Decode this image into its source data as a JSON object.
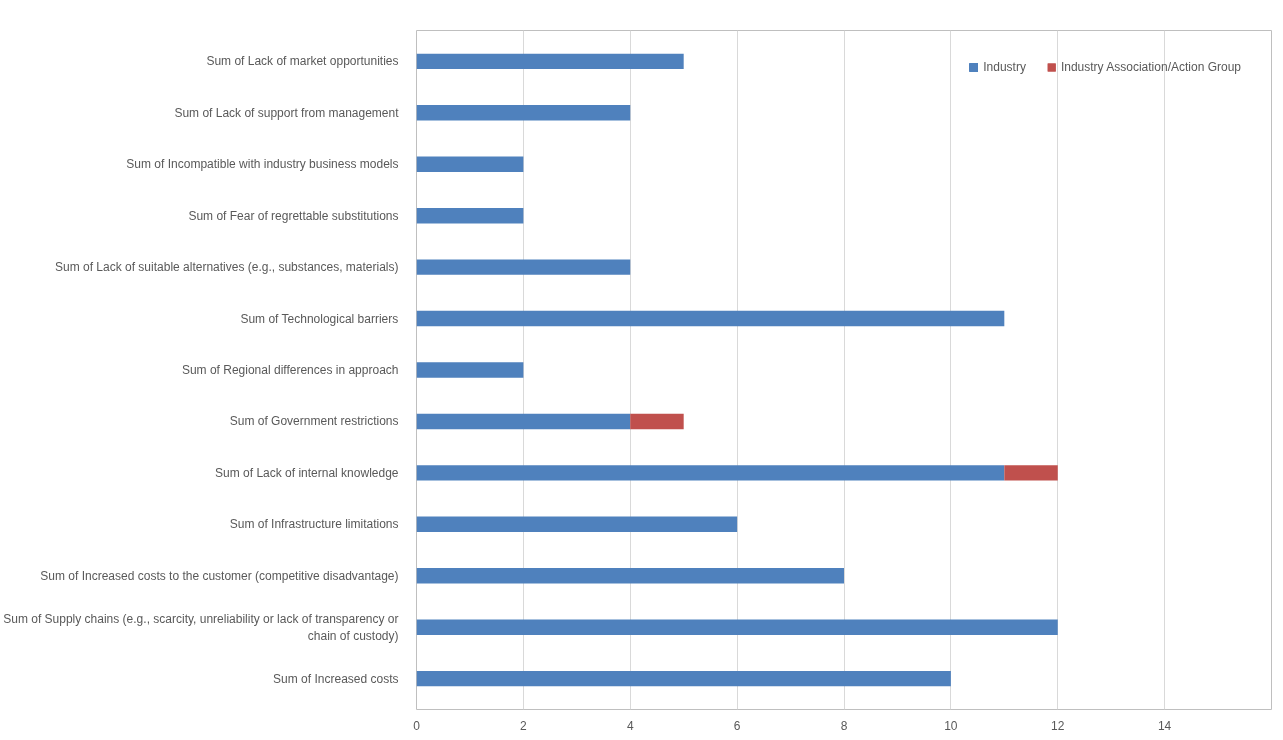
{
  "chart_data": {
    "type": "bar",
    "orientation": "horizontal",
    "stacked": true,
    "categories": [
      "Sum of Lack of market opportunities",
      "Sum of Lack of support from management",
      "Sum of Incompatible with industry business models",
      "Sum of Fear of regrettable substitutions",
      "Sum of Lack of suitable alternatives (e.g., substances, materials)",
      "Sum of Technological barriers",
      "Sum of Regional differences in approach",
      "Sum of Government restrictions",
      "Sum of Lack of internal knowledge",
      "Sum of Infrastructure limitations",
      "Sum of Increased costs to the customer (competitive disadvantage)",
      "Sum of Supply chains (e.g., scarcity, unreliability or lack of transparency or chain of custody)",
      "Sum of Increased costs"
    ],
    "series": [
      {
        "name": "Industry",
        "color": "#4f81bd",
        "values": [
          5,
          4,
          2,
          2,
          4,
          11,
          2,
          4,
          11,
          6,
          8,
          12,
          10
        ]
      },
      {
        "name": "Industry Association/Action Group",
        "color": "#c0504d",
        "values": [
          0,
          0,
          0,
          0,
          0,
          0,
          0,
          1,
          1,
          0,
          0,
          0,
          0
        ]
      }
    ],
    "xlim": [
      0,
      16
    ],
    "xticks": [
      0,
      2,
      4,
      6,
      8,
      10,
      12,
      14
    ],
    "grid": "x",
    "legend": "top right"
  }
}
